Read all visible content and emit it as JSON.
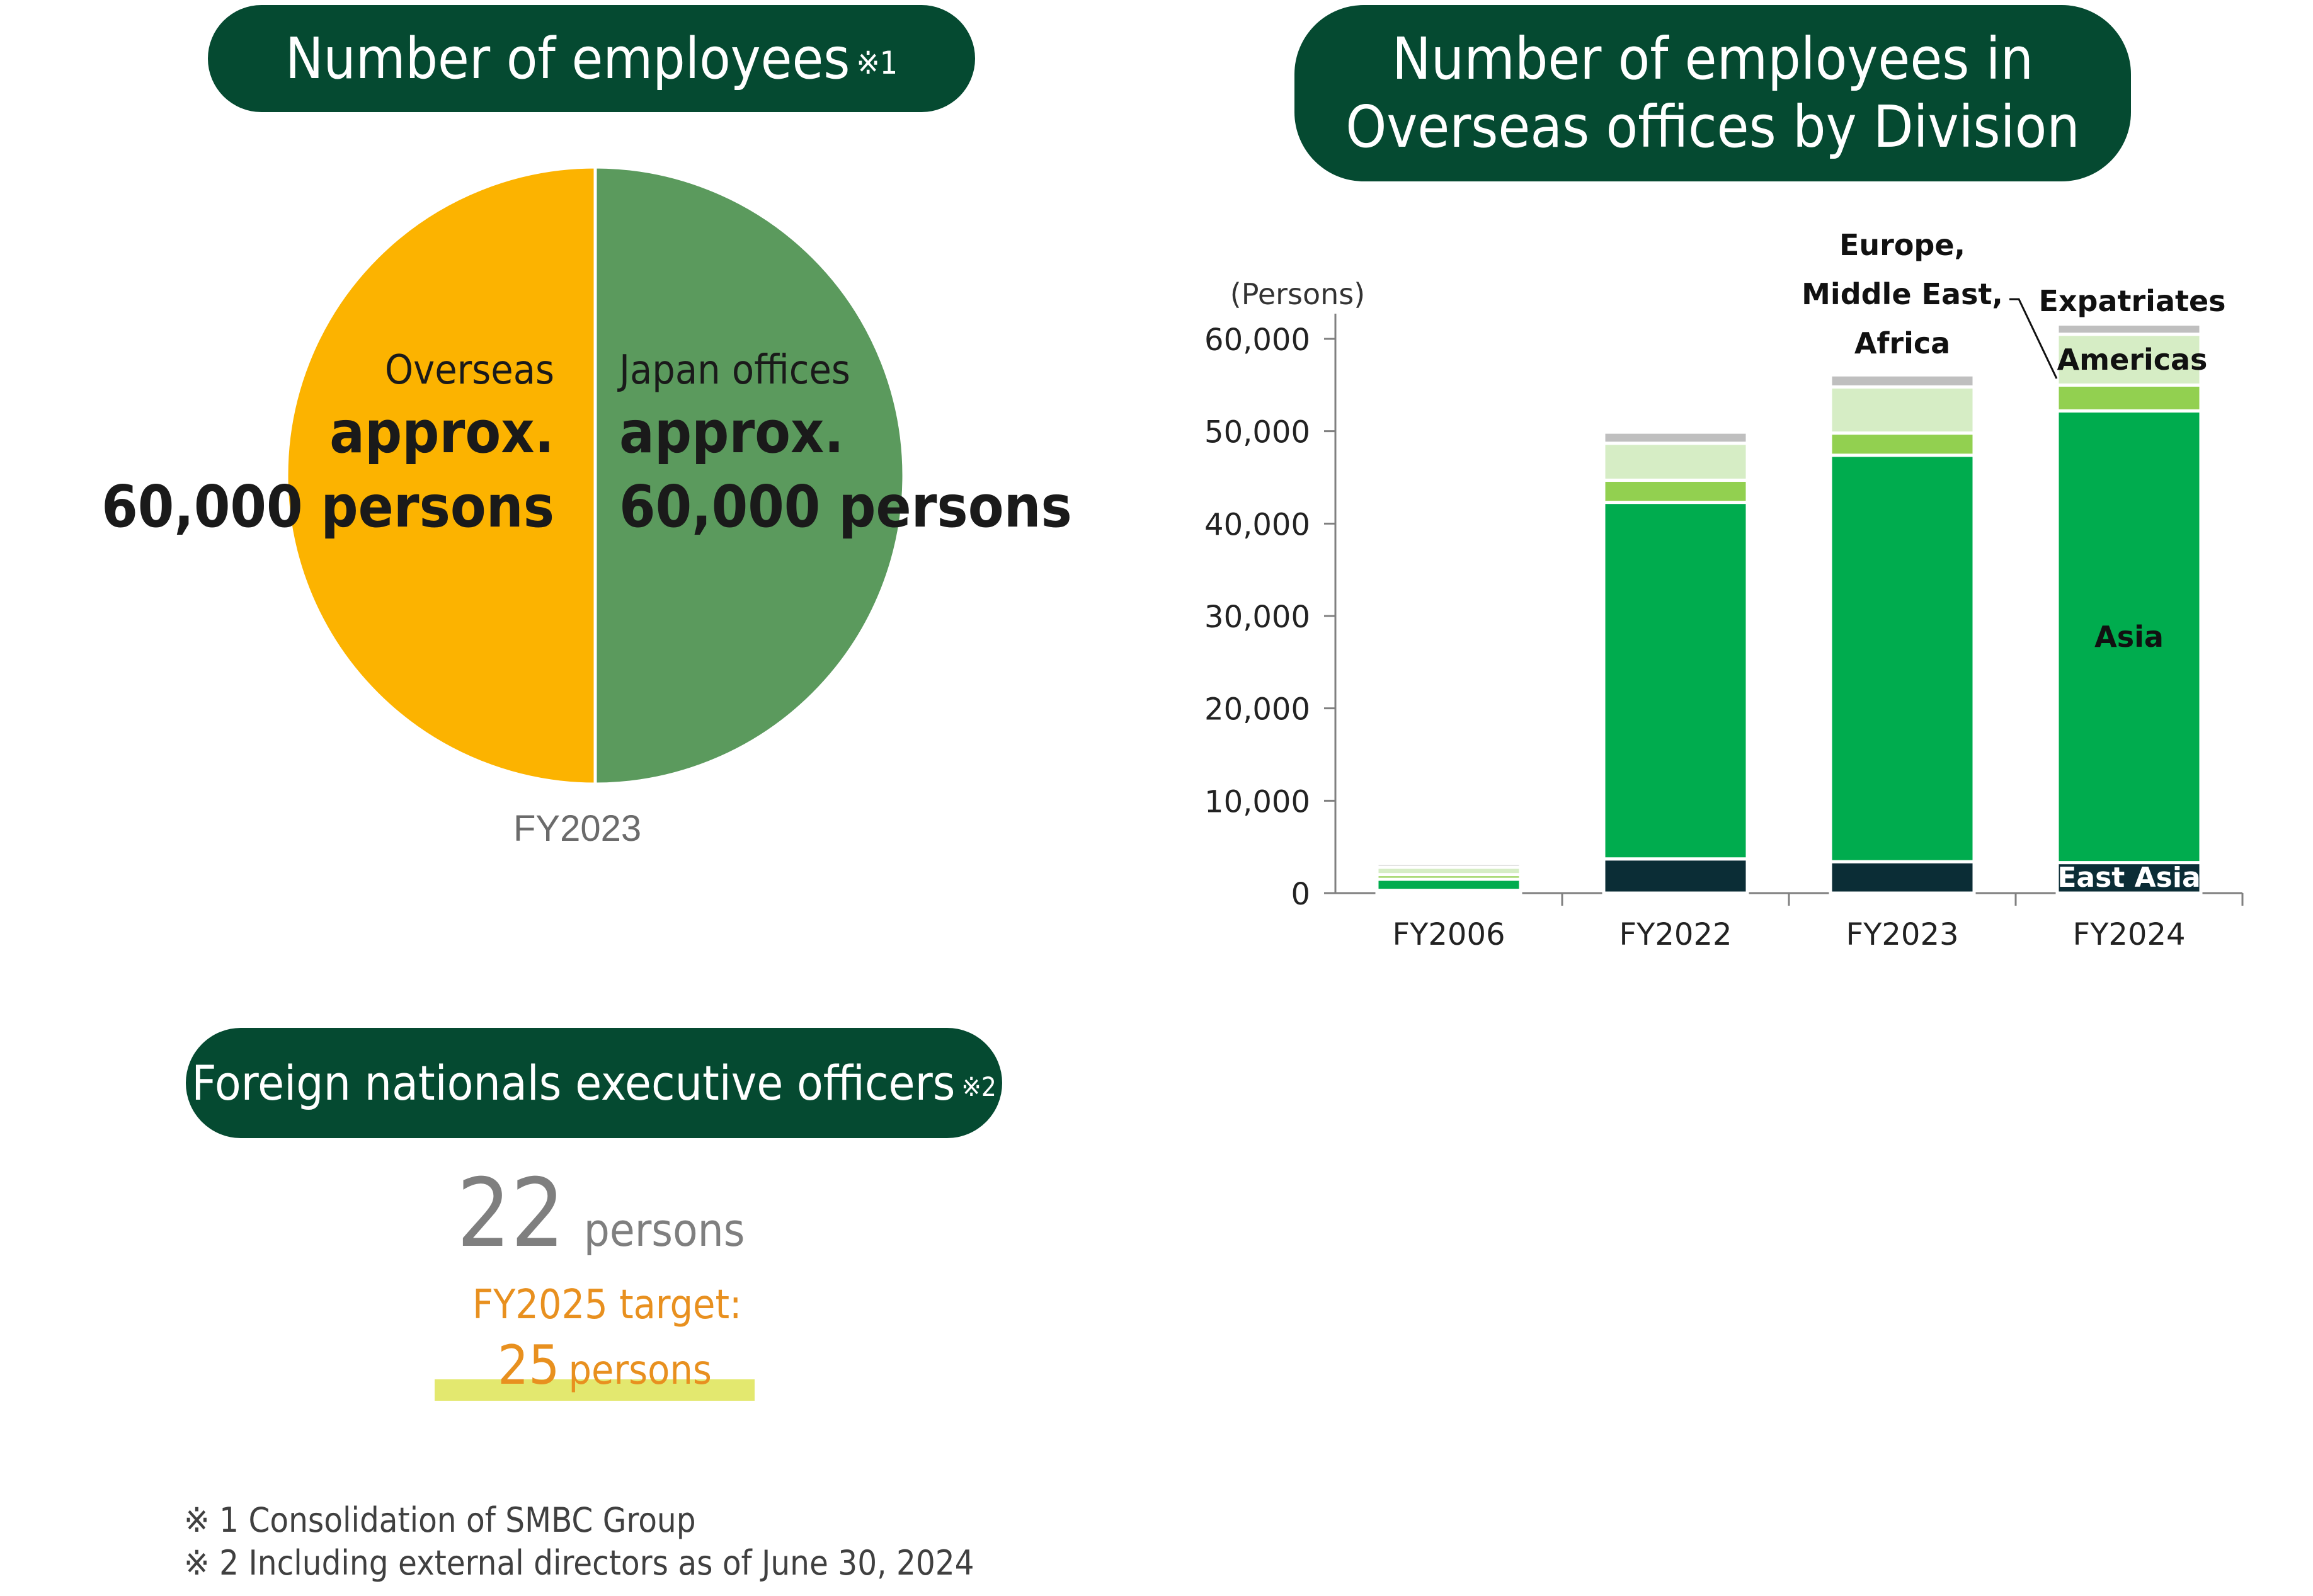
{
  "employees": {
    "title": "Number of employees",
    "title_note": "※1",
    "overseas": {
      "label": "Overseas",
      "approx": "approx.",
      "value": "60,000 persons"
    },
    "japan": {
      "label": "Japan offices",
      "approx": "approx.",
      "value": "60,000 persons"
    },
    "year": "FY2023"
  },
  "division": {
    "title_line1": "Number of employees in",
    "title_line2": "Overseas offices by Division"
  },
  "executives": {
    "title": "Foreign nationals executive officers",
    "title_note": "※2",
    "value": "22",
    "unit": "persons",
    "target_label": "FY2025 target:",
    "target_value": "25",
    "target_unit": "persons"
  },
  "notes": [
    "※ 1 Consolidation of SMBC Group",
    "※ 2 Including external directors as of June 30, 2024"
  ],
  "colors": {
    "header_bg": "#054a31",
    "pie_overseas": "#fcb300",
    "pie_japan": "#5b9a5d",
    "east_asia": "#0b2d36",
    "asia": "#00ac4e",
    "americas": "#92d050",
    "europe_mea": "#d6edc5",
    "expatriates": "#bfbfbf",
    "target_text": "#e8901f",
    "target_highlight": "#e3e86f"
  },
  "chart_data": [
    {
      "type": "pie",
      "title": "Number of employees",
      "categories": [
        "Overseas",
        "Japan offices"
      ],
      "values": [
        60000,
        60000
      ],
      "caption": "FY2023"
    },
    {
      "type": "bar",
      "stacked": true,
      "title": "Number of employees in Overseas offices by Division",
      "ylabel": "(Persons)",
      "categories": [
        "FY2006",
        "FY2022",
        "FY2023",
        "FY2024"
      ],
      "ylim": [
        0,
        60000
      ],
      "yticks": [
        0,
        10000,
        20000,
        30000,
        40000,
        50000,
        60000
      ],
      "ytick_labels": [
        "0",
        "10,000",
        "20,000",
        "30,000",
        "40,000",
        "50,000",
        "60,000"
      ],
      "series": [
        {
          "name": "East Asia",
          "values": [
            300,
            3700,
            3400,
            3300
          ]
        },
        {
          "name": "Asia",
          "values": [
            1200,
            38600,
            44000,
            48900
          ]
        },
        {
          "name": "Americas",
          "values": [
            500,
            2400,
            2400,
            2800
          ]
        },
        {
          "name": "Europe, Middle East, Africa",
          "values": [
            800,
            4000,
            5000,
            5500
          ]
        },
        {
          "name": "Expatriates",
          "values": [
            400,
            1200,
            1300,
            1100
          ]
        }
      ],
      "grid": false
    }
  ]
}
